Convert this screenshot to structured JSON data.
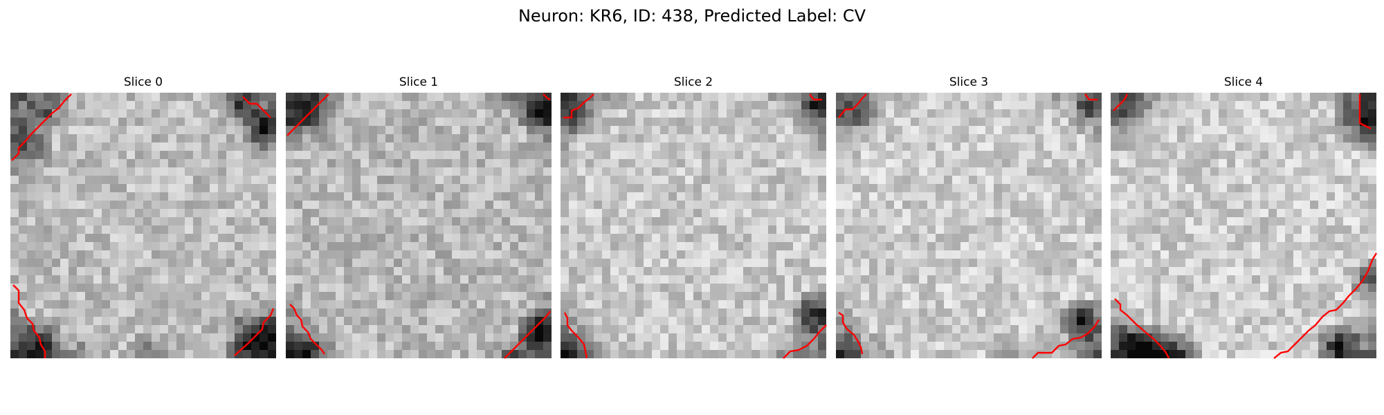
{
  "figure": {
    "title": "Neuron: KR6, ID: 438, Predicted Label: CV"
  },
  "colors": {
    "contour": "#ff0000",
    "colormap": "grayscale"
  },
  "slices": [
    {
      "label": "Slice 0"
    },
    {
      "label": "Slice 1"
    },
    {
      "label": "Slice 2"
    },
    {
      "label": "Slice 3"
    },
    {
      "label": "Slice 4"
    }
  ]
}
